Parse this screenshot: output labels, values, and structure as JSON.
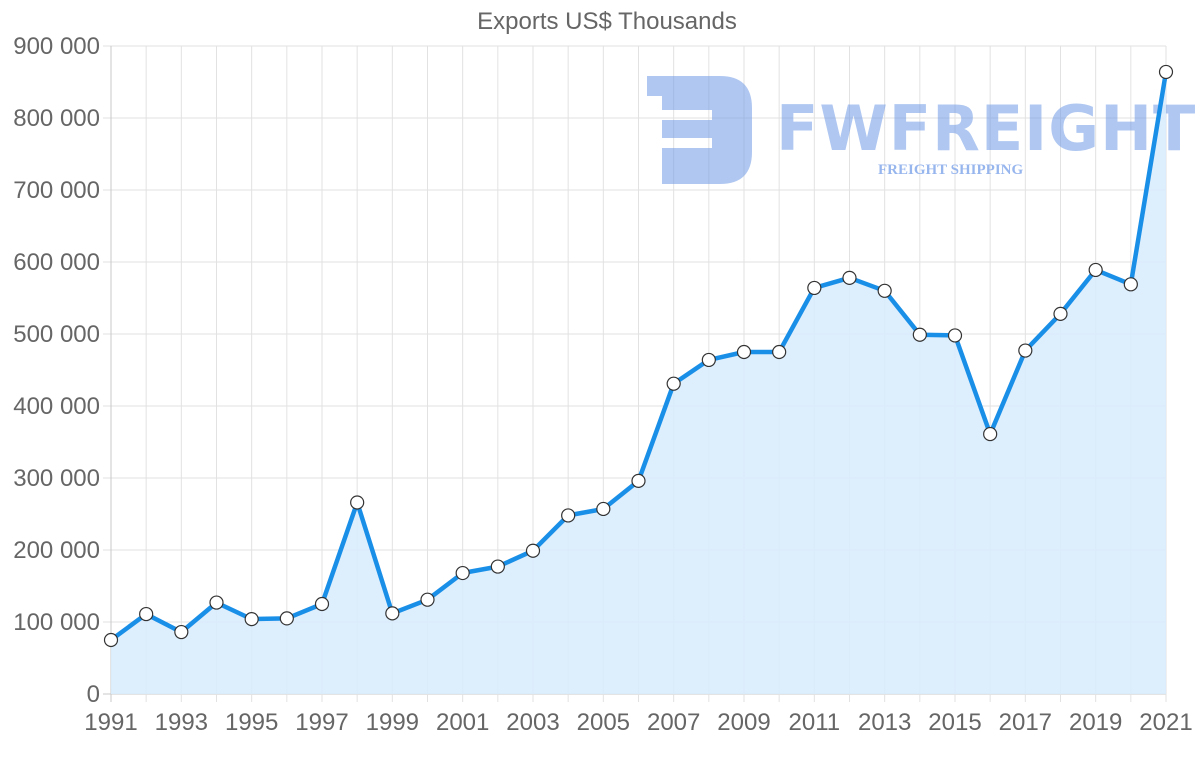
{
  "chart_data": {
    "type": "area",
    "title": "Exports US$ Thousands",
    "xlabel": "",
    "ylabel": "",
    "ylim": [
      0,
      900000
    ],
    "yticks": [
      0,
      100000,
      200000,
      300000,
      400000,
      500000,
      600000,
      700000,
      800000,
      900000
    ],
    "ytick_labels": [
      "0",
      "100 000",
      "200 000",
      "300 000",
      "400 000",
      "500 000",
      "600 000",
      "700 000",
      "800 000",
      "900 000"
    ],
    "xtick_labels": [
      "1991",
      "1993",
      "1995",
      "1997",
      "1999",
      "2001",
      "2003",
      "2005",
      "2007",
      "2009",
      "2011",
      "2013",
      "2015",
      "2017",
      "2019",
      "2021"
    ],
    "grid": true,
    "legend": null,
    "x": [
      1991,
      1992,
      1993,
      1994,
      1995,
      1996,
      1997,
      1998,
      1999,
      2000,
      2001,
      2002,
      2003,
      2004,
      2005,
      2006,
      2007,
      2008,
      2009,
      2010,
      2011,
      2012,
      2013,
      2014,
      2015,
      2016,
      2017,
      2018,
      2019,
      2020,
      2021
    ],
    "series": [
      {
        "name": "Exports US$ Thousands",
        "values": [
          75000,
          111000,
          86000,
          127000,
          104000,
          105000,
          125000,
          266000,
          112000,
          131000,
          168000,
          177000,
          199000,
          248000,
          257000,
          296000,
          431000,
          464000,
          475000,
          475000,
          564000,
          578000,
          560000,
          499000,
          498000,
          361000,
          477000,
          528000,
          589000,
          569000,
          864000
        ],
        "line_color": "#1a8fe8",
        "fill_color": "#d9ecfd",
        "marker_fill": "#ffffff",
        "marker_stroke": "#333333"
      }
    ]
  },
  "watermark": {
    "brand": "FWFREIGHT",
    "tagline": "FREIGHT SHIPPING",
    "color": "#6f9be6"
  }
}
